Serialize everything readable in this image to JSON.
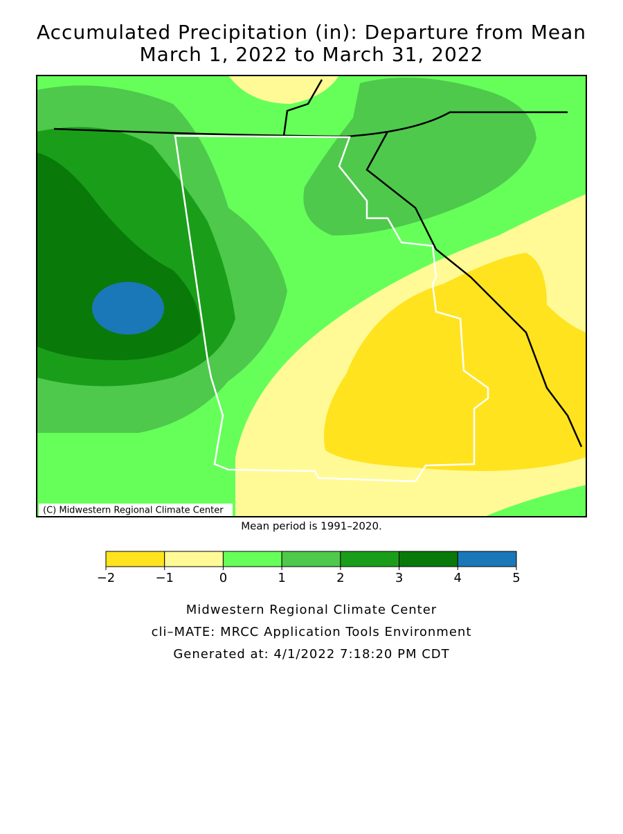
{
  "header": {
    "title": [
      "Accumulated Precipitation (in): Departure from Mean",
      "March 1, 2022 to March 31, 2022"
    ]
  },
  "map": {
    "copyright": "(C) Midwestern Regional Climate Center",
    "note": "Mean period is 1991–2020."
  },
  "legend": {
    "ticks": [
      {
        "value": -2,
        "label": "−2"
      },
      {
        "value": -1,
        "label": "−1"
      },
      0,
      1,
      2,
      3,
      4,
      5
    ],
    "colors": [
      "#ffe31f",
      "#fffa96",
      "#66ff5a",
      "#4ec94c",
      "#1a9e1a",
      "#097a09",
      "#1a78b8"
    ]
  },
  "footer": {
    "lines": [
      "Midwestern Regional Climate Center",
      "cli–MATE: MRCC Application Tools Environment",
      "Generated at: 4/1/2022 7:18:20 PM CDT"
    ]
  }
}
